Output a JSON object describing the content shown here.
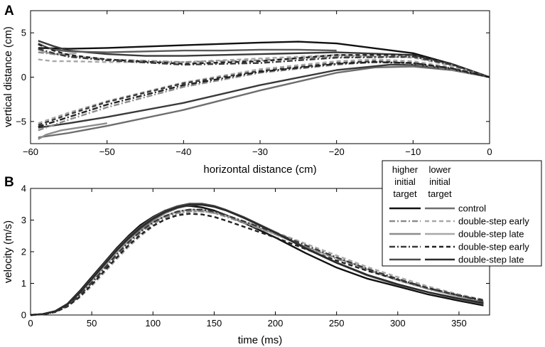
{
  "panel_labels": [
    "A",
    "B"
  ],
  "colors": {
    "black": "#111111",
    "dark": "#3a3a3a",
    "mid": "#6e6e6e",
    "light": "#a8a8a8"
  },
  "legend": {
    "col_higher": [
      "higher",
      "initial",
      "target"
    ],
    "col_lower": [
      "lower",
      "initial",
      "target"
    ],
    "rows": [
      {
        "label": "control",
        "higher": {
          "color": "#111111",
          "dash": "solid"
        },
        "lower": {
          "color": "#6e6e6e",
          "dash": "solid"
        }
      },
      {
        "label": "double-step early",
        "higher": {
          "color": "#8c8c8c",
          "dash": "dashdot"
        },
        "lower": {
          "color": "#a8a8a8",
          "dash": "dashed"
        }
      },
      {
        "label": "double-step late",
        "higher": {
          "color": "#8c8c8c",
          "dash": "solid"
        },
        "lower": {
          "color": "#a8a8a8",
          "dash": "solid"
        }
      },
      {
        "label": "double-step early",
        "higher": {
          "color": "#3a3a3a",
          "dash": "dashdot"
        },
        "lower": {
          "color": "#222222",
          "dash": "dashed"
        }
      },
      {
        "label": "double-step late",
        "higher": {
          "color": "#4a4a4a",
          "dash": "solid"
        },
        "lower": {
          "color": "#2a2a2a",
          "dash": "solid"
        }
      }
    ]
  },
  "chart_data": [
    {
      "panel": "A",
      "type": "line",
      "xlabel": "horizontal distance (cm)",
      "ylabel": "vertical distance (cm)",
      "xlim": [
        -60,
        0
      ],
      "ylim": [
        -7.5,
        7.5
      ],
      "xticks": [
        -60,
        -50,
        -40,
        -30,
        -20,
        -10,
        0
      ],
      "yticks": [
        -5,
        0,
        5
      ],
      "xtick_labels": [
        "−60",
        "−50",
        "−40",
        "−30",
        "−20",
        "−10",
        "0"
      ],
      "ytick_labels": [
        "−5",
        "0",
        "5"
      ],
      "grid": false,
      "series": [
        {
          "color": "#111111",
          "dash": "solid",
          "x": [
            -59,
            -55,
            -50,
            -40,
            -30,
            -25,
            -20,
            -10,
            -5,
            0
          ],
          "y": [
            3.3,
            3.2,
            3.3,
            3.6,
            3.9,
            4.0,
            3.8,
            2.7,
            1.5,
            0
          ]
        },
        {
          "color": "#3a3a3a",
          "dash": "solid",
          "x": [
            -59,
            -57,
            -55,
            -50,
            -45,
            -40,
            -30,
            -20,
            -10,
            -5,
            0
          ],
          "y": [
            4.1,
            3.5,
            3.0,
            2.6,
            2.4,
            2.4,
            2.6,
            2.8,
            2.5,
            1.5,
            0
          ]
        },
        {
          "color": "#5a5a5a",
          "dash": "solid",
          "x": [
            -59,
            -58,
            -57,
            -56,
            -55,
            -50,
            -45,
            -40,
            -35,
            -30,
            -25,
            -20
          ],
          "y": [
            3.8,
            3.4,
            3.1,
            3.0,
            2.9,
            2.8,
            2.9,
            3.0,
            3.0,
            3.1,
            3.1,
            3.0
          ]
        },
        {
          "color": "#a8a8a8",
          "dash": "solid",
          "x": [
            -59,
            -58,
            -57,
            -56,
            -55,
            -54
          ],
          "y": [
            3.1,
            2.8,
            2.6,
            2.6,
            2.6,
            2.7
          ]
        },
        {
          "color": "#a8a8a8",
          "dash": "dashed",
          "x": [
            -59,
            -57,
            -55,
            -50,
            -40,
            -30,
            -20,
            -10,
            -5,
            0
          ],
          "y": [
            2.0,
            1.8,
            1.8,
            1.7,
            1.7,
            2.1,
            2.5,
            2.2,
            1.3,
            0
          ]
        },
        {
          "color": "#8c8c8c",
          "dash": "dashdot",
          "x": [
            -59,
            -55,
            -50,
            -40,
            -30,
            -20,
            -10,
            -5,
            0
          ],
          "y": [
            2.8,
            2.4,
            2.0,
            1.7,
            1.9,
            2.3,
            2.3,
            1.4,
            0
          ]
        },
        {
          "color": "#222222",
          "dash": "dashed",
          "x": [
            -59,
            -57,
            -55,
            -50,
            -40,
            -30,
            -20,
            -10,
            -5,
            0
          ],
          "y": [
            3.7,
            3.0,
            2.5,
            2.0,
            1.5,
            1.8,
            2.5,
            2.5,
            1.5,
            0
          ]
        },
        {
          "color": "#3a3a3a",
          "dash": "dashdot",
          "x": [
            -59,
            -57,
            -55,
            -50,
            -40,
            -30,
            -20,
            -10,
            -5,
            0
          ],
          "y": [
            3.2,
            2.7,
            2.3,
            1.9,
            1.4,
            1.6,
            2.2,
            2.3,
            1.4,
            0
          ]
        },
        {
          "color": "#6e6e6e",
          "dash": "solid",
          "x": [
            -59,
            -55,
            -50,
            -40,
            -30,
            -20,
            -15,
            -10,
            -5,
            0
          ],
          "y": [
            -6.8,
            -6.3,
            -5.5,
            -3.7,
            -1.5,
            0.5,
            1.1,
            1.2,
            0.8,
            0
          ]
        },
        {
          "color": "#3a3a3a",
          "dash": "solid",
          "x": [
            -59,
            -55,
            -50,
            -40,
            -30,
            -20,
            -13,
            -10,
            -5,
            0
          ],
          "y": [
            -5.7,
            -5.2,
            -4.5,
            -2.9,
            -0.9,
            0.8,
            1.4,
            1.4,
            0.9,
            0
          ]
        },
        {
          "color": "#8c8c8c",
          "dash": "solid",
          "x": [
            -59,
            -58,
            -56,
            -53,
            -50
          ],
          "y": [
            -7.0,
            -6.5,
            -6.0,
            -5.6,
            -5.2
          ]
        },
        {
          "color": "#a8a8a8",
          "dash": "dashed",
          "x": [
            -59,
            -55,
            -50,
            -40,
            -30,
            -20,
            -15,
            -10,
            -5,
            0
          ],
          "y": [
            -5.2,
            -4.0,
            -2.7,
            -0.6,
            0.9,
            1.8,
            2.0,
            1.8,
            1.1,
            0
          ]
        },
        {
          "color": "#8c8c8c",
          "dash": "dashdot",
          "x": [
            -59,
            -55,
            -50,
            -40,
            -30,
            -20,
            -15,
            -10,
            -5,
            0
          ],
          "y": [
            -6.0,
            -4.8,
            -3.4,
            -1.1,
            0.5,
            1.4,
            1.7,
            1.5,
            0.9,
            0
          ]
        },
        {
          "color": "#3a3a3a",
          "dash": "dashed",
          "x": [
            -59,
            -55,
            -50,
            -40,
            -30,
            -20,
            -15,
            -10,
            -5,
            0
          ],
          "y": [
            -5.4,
            -4.2,
            -2.8,
            -0.7,
            0.7,
            1.6,
            1.8,
            1.6,
            1.0,
            0
          ]
        },
        {
          "color": "#222222",
          "dash": "dashdot",
          "x": [
            -59,
            -55,
            -50,
            -40,
            -30,
            -20,
            -15,
            -10,
            -5,
            0
          ],
          "y": [
            -5.6,
            -4.5,
            -3.1,
            -0.9,
            0.6,
            1.5,
            1.7,
            1.6,
            1.0,
            0
          ]
        }
      ]
    },
    {
      "panel": "B",
      "type": "line",
      "xlabel": "time (ms)",
      "ylabel": "velocity (m/s)",
      "xlim": [
        0,
        375
      ],
      "ylim": [
        0,
        4
      ],
      "xticks": [
        0,
        50,
        100,
        150,
        200,
        250,
        300,
        350
      ],
      "yticks": [
        0,
        1,
        2,
        3,
        4
      ],
      "xtick_labels": [
        "0",
        "50",
        "100",
        "150",
        "200",
        "250",
        "300",
        "350"
      ],
      "ytick_labels": [
        "0",
        "1",
        "2",
        "3",
        "4"
      ],
      "grid": false,
      "series": [
        {
          "color": "#111111",
          "dash": "solid",
          "x": [
            0,
            10,
            20,
            30,
            40,
            50,
            60,
            70,
            80,
            90,
            100,
            110,
            120,
            130,
            140,
            150,
            160,
            175,
            200,
            225,
            250,
            275,
            300,
            325,
            350,
            370
          ],
          "y": [
            0,
            0.03,
            0.12,
            0.35,
            0.75,
            1.2,
            1.65,
            2.1,
            2.5,
            2.85,
            3.1,
            3.3,
            3.42,
            3.45,
            3.4,
            3.3,
            3.15,
            2.9,
            2.45,
            1.95,
            1.5,
            1.15,
            0.9,
            0.65,
            0.45,
            0.3
          ]
        },
        {
          "color": "#6e6e6e",
          "dash": "solid",
          "x": [
            0,
            10,
            20,
            30,
            40,
            50,
            60,
            70,
            80,
            90,
            100,
            110,
            120,
            130,
            140,
            150,
            160,
            175,
            200,
            225,
            250,
            275,
            300,
            325,
            350,
            370
          ],
          "y": [
            0,
            0.03,
            0.11,
            0.32,
            0.68,
            1.1,
            1.55,
            1.98,
            2.38,
            2.72,
            3.0,
            3.22,
            3.38,
            3.47,
            3.48,
            3.42,
            3.3,
            3.05,
            2.6,
            2.1,
            1.65,
            1.25,
            0.95,
            0.72,
            0.5,
            0.35
          ]
        },
        {
          "color": "#a8a8a8",
          "dash": "solid",
          "x": [
            0,
            10,
            20,
            30,
            40,
            50,
            60,
            70,
            80,
            90,
            100,
            110,
            120,
            130,
            140,
            150,
            160,
            175,
            200,
            225,
            250,
            265,
            275,
            300,
            325,
            350,
            370
          ],
          "y": [
            0,
            0.03,
            0.11,
            0.32,
            0.66,
            1.08,
            1.52,
            1.95,
            2.33,
            2.66,
            2.93,
            3.13,
            3.27,
            3.33,
            3.32,
            3.25,
            3.13,
            2.93,
            2.55,
            2.15,
            1.8,
            1.6,
            1.45,
            1.1,
            0.82,
            0.58,
            0.4
          ]
        },
        {
          "color": "#a8a8a8",
          "dash": "dashed",
          "x": [
            0,
            10,
            20,
            30,
            40,
            50,
            60,
            70,
            80,
            90,
            100,
            110,
            120,
            130,
            140,
            150,
            160,
            175,
            200,
            225,
            250,
            275,
            300,
            325,
            350,
            370
          ],
          "y": [
            0,
            0.02,
            0.09,
            0.26,
            0.55,
            0.92,
            1.33,
            1.75,
            2.15,
            2.5,
            2.8,
            3.02,
            3.18,
            3.26,
            3.27,
            3.22,
            3.12,
            2.95,
            2.62,
            2.25,
            1.88,
            1.52,
            1.2,
            0.9,
            0.65,
            0.48
          ]
        },
        {
          "color": "#8c8c8c",
          "dash": "dashdot",
          "x": [
            0,
            10,
            20,
            30,
            40,
            50,
            60,
            70,
            80,
            90,
            100,
            110,
            120,
            130,
            140,
            150,
            160,
            175,
            200,
            225,
            250,
            275,
            300,
            325,
            350,
            370
          ],
          "y": [
            0,
            0.02,
            0.1,
            0.28,
            0.6,
            1.0,
            1.42,
            1.85,
            2.25,
            2.6,
            2.88,
            3.08,
            3.22,
            3.28,
            3.28,
            3.22,
            3.1,
            2.9,
            2.55,
            2.15,
            1.78,
            1.42,
            1.1,
            0.82,
            0.6,
            0.42
          ]
        },
        {
          "color": "#222222",
          "dash": "dashed",
          "x": [
            0,
            10,
            20,
            30,
            40,
            50,
            60,
            70,
            80,
            90,
            100,
            110,
            120,
            130,
            140,
            150,
            160,
            175,
            200,
            225,
            250,
            275,
            300,
            325,
            350,
            370
          ],
          "y": [
            0,
            0.02,
            0.09,
            0.27,
            0.57,
            0.96,
            1.38,
            1.8,
            2.2,
            2.54,
            2.82,
            3.02,
            3.15,
            3.2,
            3.18,
            3.1,
            2.98,
            2.78,
            2.45,
            2.08,
            1.72,
            1.4,
            1.12,
            0.85,
            0.62,
            0.47
          ]
        },
        {
          "color": "#3a3a3a",
          "dash": "dashdot",
          "x": [
            0,
            10,
            20,
            30,
            40,
            50,
            60,
            70,
            80,
            90,
            100,
            110,
            120,
            130,
            140,
            150,
            160,
            175,
            200,
            225,
            250,
            275,
            300,
            325,
            350,
            370
          ],
          "y": [
            0,
            0.02,
            0.1,
            0.29,
            0.62,
            1.03,
            1.46,
            1.9,
            2.3,
            2.65,
            2.93,
            3.13,
            3.27,
            3.33,
            3.33,
            3.27,
            3.15,
            2.95,
            2.6,
            2.2,
            1.82,
            1.46,
            1.14,
            0.85,
            0.62,
            0.44
          ]
        },
        {
          "color": "#4a4a4a",
          "dash": "solid",
          "x": [
            0,
            10,
            20,
            30,
            40,
            50,
            60,
            70,
            80,
            90,
            100,
            110,
            120,
            130,
            140,
            150,
            160,
            175,
            200,
            225,
            250,
            275,
            300,
            325,
            350,
            370
          ],
          "y": [
            0,
            0.03,
            0.12,
            0.34,
            0.72,
            1.16,
            1.62,
            2.06,
            2.46,
            2.8,
            3.08,
            3.3,
            3.44,
            3.52,
            3.52,
            3.45,
            3.32,
            3.08,
            2.62,
            2.12,
            1.66,
            1.27,
            0.97,
            0.72,
            0.52,
            0.36
          ]
        },
        {
          "color": "#2a2a2a",
          "dash": "solid",
          "x": [
            0,
            10,
            20,
            30,
            40,
            50,
            60,
            70,
            80,
            90,
            100,
            110,
            120,
            130,
            140,
            150,
            160,
            175,
            200,
            225,
            250,
            275,
            300,
            325,
            350,
            370
          ],
          "y": [
            0,
            0.03,
            0.12,
            0.33,
            0.7,
            1.13,
            1.58,
            2.02,
            2.42,
            2.76,
            3.04,
            3.26,
            3.4,
            3.48,
            3.48,
            3.42,
            3.3,
            3.06,
            2.6,
            2.1,
            1.65,
            1.27,
            0.97,
            0.72,
            0.52,
            0.38
          ]
        }
      ]
    }
  ]
}
